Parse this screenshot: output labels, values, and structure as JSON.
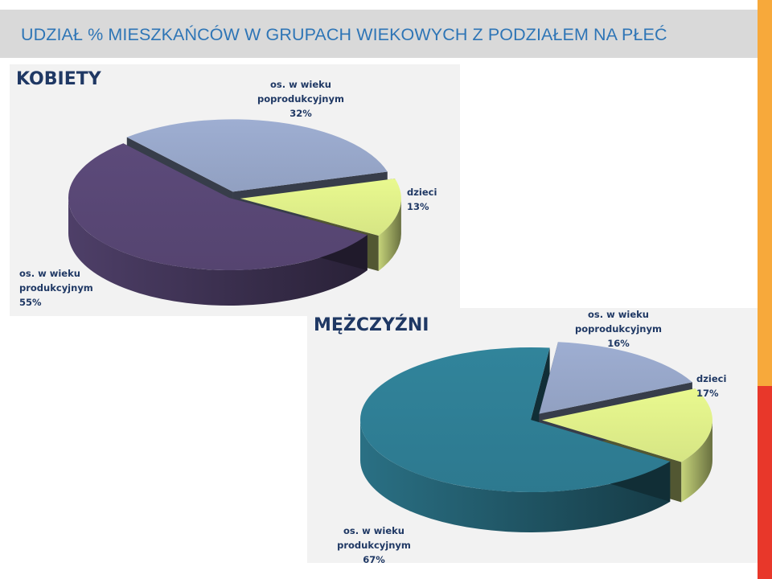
{
  "page": {
    "title": "UDZIAŁ % MIESZKAŃCÓW W GRUPACH WIEKOWYCH Z PODZIAŁEM NA PŁEĆ",
    "accent_colors": [
      "#f7a93b",
      "#e8372a"
    ]
  },
  "chart_data": [
    {
      "type": "pie",
      "title": "KOBIETY",
      "categories": [
        "os. w wieku produkcyjnym",
        "os. w wieku poprodukcyjnym",
        "dzieci"
      ],
      "values": [
        55,
        32,
        13
      ],
      "value_labels": [
        "55%",
        "32%",
        "13%"
      ],
      "colors": [
        "#5c4a7a",
        "#9eaed2",
        "#e9f98f"
      ],
      "label_lines": [
        [
          "os. w wieku",
          "produkcyjnym",
          "55%"
        ],
        [
          "os. w wieku",
          "poprodukcyjnym",
          "32%"
        ],
        [
          "dzieci",
          "13%"
        ]
      ]
    },
    {
      "type": "pie",
      "title": "MĘŻCZYŹNI",
      "categories": [
        "os. w wieku produkcyjnym",
        "os. w wieku poprodukcyjnym",
        "dzieci"
      ],
      "values": [
        67,
        16,
        17
      ],
      "value_labels": [
        "67%",
        "16%",
        "17%"
      ],
      "colors": [
        "#31849b",
        "#9eaed2",
        "#e9f98f"
      ],
      "label_lines": [
        [
          "os. w wieku",
          "produkcyjnym",
          "67%"
        ],
        [
          "os. w wieku",
          "poprodukcyjnym",
          "16%"
        ],
        [
          "dzieci",
          "17%"
        ]
      ]
    }
  ]
}
